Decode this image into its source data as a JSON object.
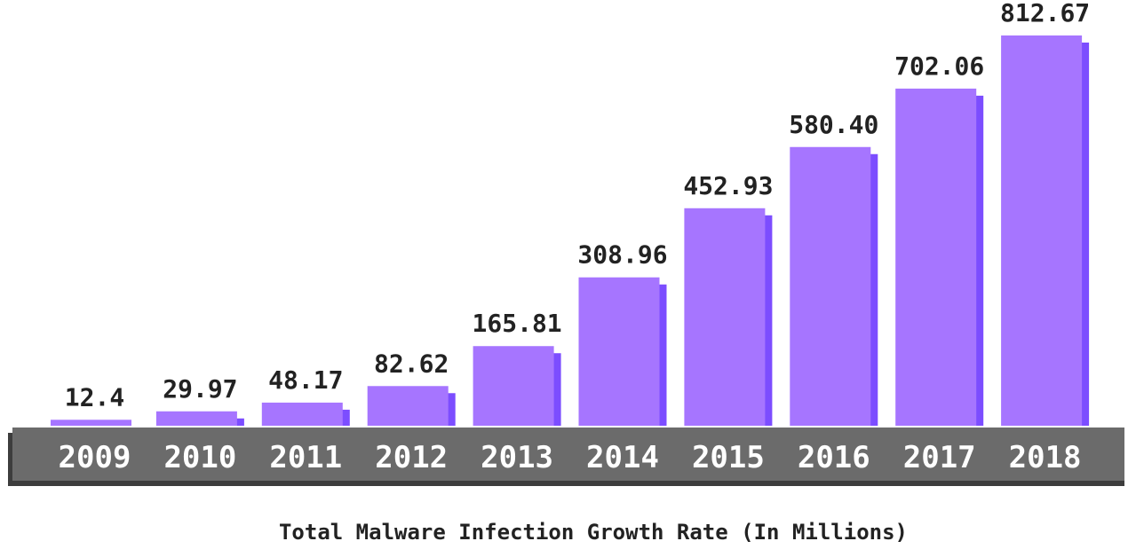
{
  "chart_data": {
    "type": "bar",
    "title": "Total Malware Infection Growth Rate (In Millions)",
    "categories": [
      "2009",
      "2010",
      "2011",
      "2012",
      "2013",
      "2014",
      "2015",
      "2016",
      "2017",
      "2018"
    ],
    "values": [
      12.4,
      29.97,
      48.17,
      82.62,
      165.81,
      308.96,
      452.93,
      580.4,
      702.06,
      812.67
    ],
    "value_labels": [
      "12.4",
      "29.97",
      "48.17",
      "82.62",
      "165.81",
      "308.96",
      "452.93",
      "580.40",
      "702.06",
      "812.67"
    ],
    "xlabel": "",
    "ylabel": "",
    "ylim": [
      0,
      812.67
    ],
    "grid": false,
    "legend": "none"
  },
  "colors": {
    "bar": "#a675ff",
    "bar_shadow": "#7c4dff",
    "axis_band": "#6b6b6b",
    "axis_band_shadow": "#3d3d3d",
    "tick_text": "#ffffff",
    "label_text": "#222222"
  }
}
